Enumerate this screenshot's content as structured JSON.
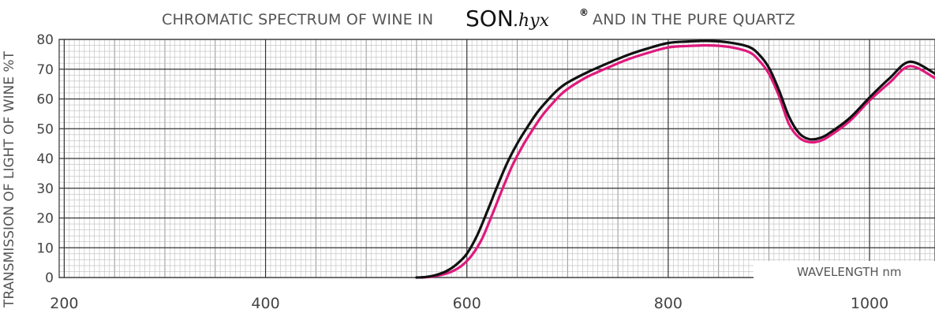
{
  "chart_data": {
    "type": "line",
    "title": {
      "prefix": "CHROMATIC SPECTRUM OF WINE IN",
      "brand_main": "SON",
      "brand_script": ".hyx",
      "brand_reg": "®",
      "suffix": "AND IN THE PURE QUARTZ"
    },
    "ylabel": "TRANSMISSION OF LIGHT OF WINE %T",
    "xlabel": "WAVELENGTH nm",
    "xlim": [
      195,
      1065
    ],
    "ylim": [
      0,
      80
    ],
    "x_ticks": [
      200,
      400,
      600,
      800,
      1000
    ],
    "y_ticks": [
      0,
      10,
      20,
      30,
      40,
      50,
      60,
      70,
      80
    ],
    "grid": true,
    "series": [
      {
        "color": "#111111",
        "x": [
          550,
          560,
          570,
          580,
          590,
          600,
          610,
          620,
          630,
          640,
          650,
          660,
          670,
          680,
          690,
          700,
          720,
          740,
          760,
          780,
          800,
          820,
          840,
          860,
          880,
          890,
          900,
          910,
          920,
          930,
          940,
          950,
          960,
          980,
          1000,
          1020,
          1040,
          1065
        ],
        "y": [
          0,
          0.2,
          0.9,
          2.2,
          4.5,
          8.0,
          14.0,
          22.0,
          30.5,
          38.5,
          45.0,
          50.5,
          55.5,
          59.5,
          63.0,
          65.5,
          69.0,
          72.0,
          74.8,
          77.0,
          78.8,
          79.3,
          79.5,
          79.0,
          77.5,
          75.0,
          70.5,
          63.0,
          54.0,
          48.5,
          46.5,
          46.8,
          48.5,
          53.5,
          60.5,
          67.0,
          72.5,
          68.5
        ]
      },
      {
        "color": "#e0197d",
        "x": [
          555,
          565,
          575,
          585,
          595,
          605,
          615,
          625,
          635,
          645,
          655,
          665,
          675,
          685,
          695,
          705,
          720,
          740,
          760,
          780,
          800,
          820,
          840,
          860,
          880,
          890,
          900,
          910,
          920,
          930,
          940,
          950,
          960,
          980,
          1000,
          1020,
          1040,
          1065
        ],
        "y": [
          0,
          0.3,
          0.9,
          2.0,
          4.0,
          7.5,
          13.0,
          21.0,
          29.5,
          37.5,
          44.0,
          49.5,
          54.5,
          58.5,
          62.0,
          64.5,
          67.5,
          70.5,
          73.3,
          75.5,
          77.3,
          77.8,
          78.0,
          77.5,
          75.8,
          73.0,
          68.5,
          61.0,
          51.5,
          47.0,
          45.5,
          45.8,
          47.5,
          52.5,
          59.5,
          65.5,
          71.0,
          67.0
        ]
      }
    ]
  }
}
